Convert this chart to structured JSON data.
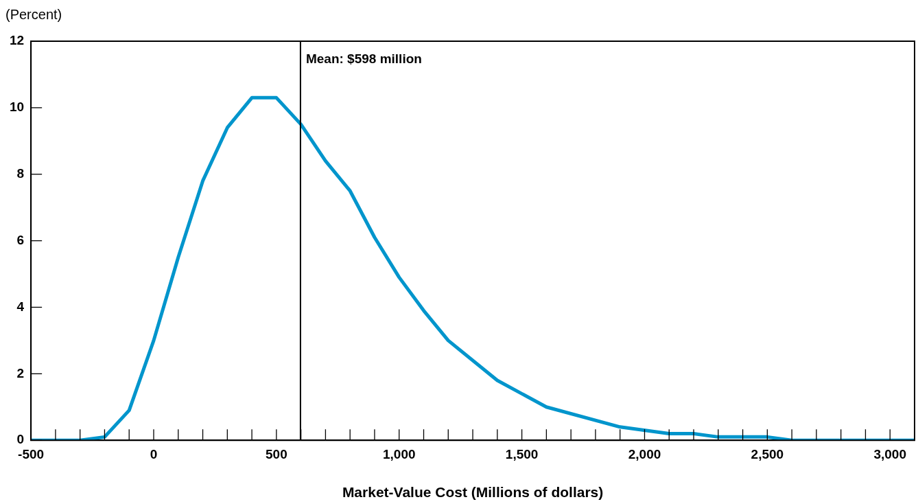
{
  "chart_data": {
    "type": "line",
    "ylabel": "(Percent)",
    "xlabel": "Market-Value Cost (Millions of dollars)",
    "x": [
      -500,
      -300,
      -200,
      -100,
      0,
      100,
      200,
      300,
      400,
      500,
      600,
      700,
      800,
      900,
      1000,
      1100,
      1200,
      1400,
      1600,
      1900,
      2100,
      2200,
      2300,
      2500,
      2600,
      3100
    ],
    "series": [
      {
        "color": "#0095cc",
        "values": [
          0,
          0,
          0.1,
          0.9,
          3.0,
          5.5,
          7.8,
          9.4,
          10.3,
          10.3,
          9.5,
          8.4,
          7.5,
          6.1,
          4.9,
          3.9,
          3.0,
          1.8,
          1.0,
          0.4,
          0.2,
          0.2,
          0.1,
          0.1,
          0,
          0
        ]
      }
    ],
    "xlim": [
      -500,
      3100
    ],
    "xticks": [
      {
        "value": -500,
        "label": "-500"
      },
      {
        "value": -400,
        "label": null
      },
      {
        "value": -300,
        "label": null
      },
      {
        "value": -200,
        "label": null
      },
      {
        "value": -100,
        "label": null
      },
      {
        "value": 0,
        "label": "0"
      },
      {
        "value": 100,
        "label": null
      },
      {
        "value": 200,
        "label": null
      },
      {
        "value": 300,
        "label": null
      },
      {
        "value": 400,
        "label": null
      },
      {
        "value": 500,
        "label": "500"
      },
      {
        "value": 600,
        "label": null
      },
      {
        "value": 700,
        "label": null
      },
      {
        "value": 800,
        "label": null
      },
      {
        "value": 900,
        "label": null
      },
      {
        "value": 1000,
        "label": "1,000"
      },
      {
        "value": 1100,
        "label": null
      },
      {
        "value": 1200,
        "label": null
      },
      {
        "value": 1300,
        "label": null
      },
      {
        "value": 1400,
        "label": null
      },
      {
        "value": 1500,
        "label": "1,500"
      },
      {
        "value": 1600,
        "label": null
      },
      {
        "value": 1700,
        "label": null
      },
      {
        "value": 1800,
        "label": null
      },
      {
        "value": 1900,
        "label": null
      },
      {
        "value": 2000,
        "label": "2,000"
      },
      {
        "value": 2100,
        "label": null
      },
      {
        "value": 2200,
        "label": null
      },
      {
        "value": 2300,
        "label": null
      },
      {
        "value": 2400,
        "label": null
      },
      {
        "value": 2500,
        "label": "2,500"
      },
      {
        "value": 2600,
        "label": null
      },
      {
        "value": 2700,
        "label": null
      },
      {
        "value": 2800,
        "label": null
      },
      {
        "value": 2900,
        "label": null
      },
      {
        "value": 3000,
        "label": "3,000"
      }
    ],
    "ylim": [
      0,
      12
    ],
    "yticks": [
      0,
      2,
      4,
      6,
      8,
      10,
      12
    ],
    "ref_lines": [
      {
        "axis": "x",
        "value": 598,
        "label": "Mean: $598 million",
        "color": "#000000"
      }
    ],
    "marker": "none",
    "line_style": "solid",
    "legend": false
  }
}
